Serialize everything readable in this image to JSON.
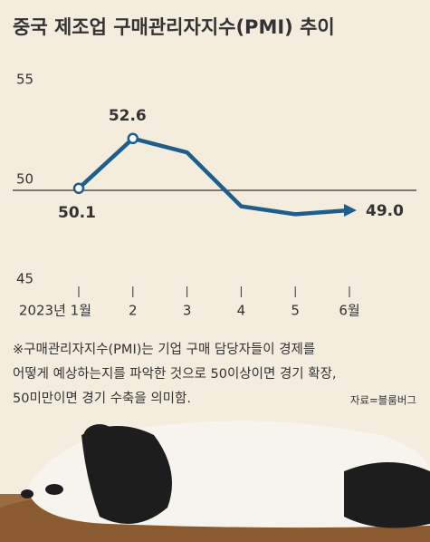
{
  "chart_data": {
    "type": "line",
    "title": "중국 제조업 구매관리자지수(PMI) 추이",
    "categories": [
      "2023년 1월",
      "2",
      "3",
      "4",
      "5",
      "6월"
    ],
    "values": [
      50.1,
      52.6,
      51.9,
      49.2,
      48.8,
      49.0
    ],
    "value_labels": [
      "50.1",
      "52.6",
      null,
      null,
      null,
      "49.0"
    ],
    "color": "#1f5e8c",
    "ylim": [
      45,
      55
    ],
    "yticks": [
      45,
      50,
      55
    ],
    "reference_line": 50,
    "note": [
      "※구매관리자지수(PMI)는 기업 구매 담당자들이 경제를",
      "어떻게 예상하는지를 파악한 것으로 50이상이면 경기 확장,",
      "50미만이면 경기 수축을 의미함."
    ],
    "source": "자료=블룸버그"
  }
}
